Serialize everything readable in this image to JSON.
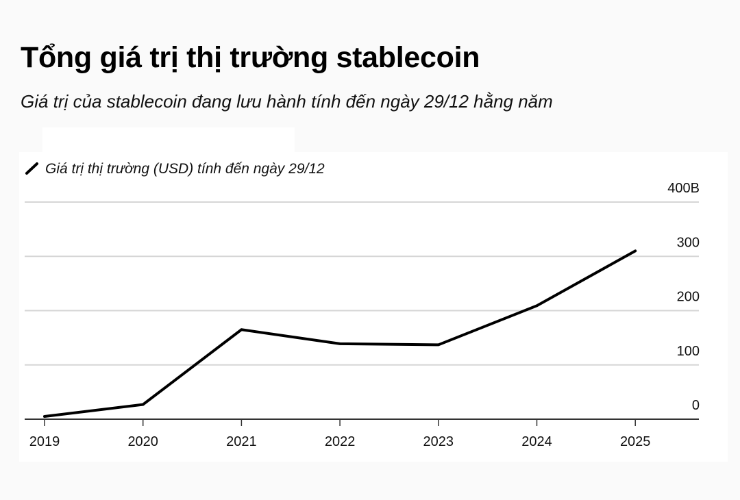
{
  "header": {
    "title": "Tổng giá trị thị trường stablecoin",
    "subtitle": "Giá trị của stablecoin đang lưu hành tính đến ngày 29/12 hằng năm"
  },
  "chart_data": {
    "type": "line",
    "title": "Tổng giá trị thị trường stablecoin",
    "subtitle": "Giá trị của stablecoin đang lưu hành tính đến ngày 29/12 hằng năm",
    "x": [
      "2019",
      "2020",
      "2021",
      "2022",
      "2023",
      "2024",
      "2025"
    ],
    "series": [
      {
        "name": "Giá trị thị trường (USD) tính đến ngày 29/12",
        "values": [
          5,
          27,
          165,
          139,
          137,
          209,
          310
        ],
        "color": "#000000"
      }
    ],
    "ylim": [
      0,
      400
    ],
    "y_ticks": [
      0,
      100,
      200,
      300,
      400
    ],
    "y_tick_labels": [
      "0",
      "100",
      "200",
      "300",
      "400B"
    ],
    "y_axis_position": "right",
    "grid": true,
    "legend": "top-left"
  }
}
